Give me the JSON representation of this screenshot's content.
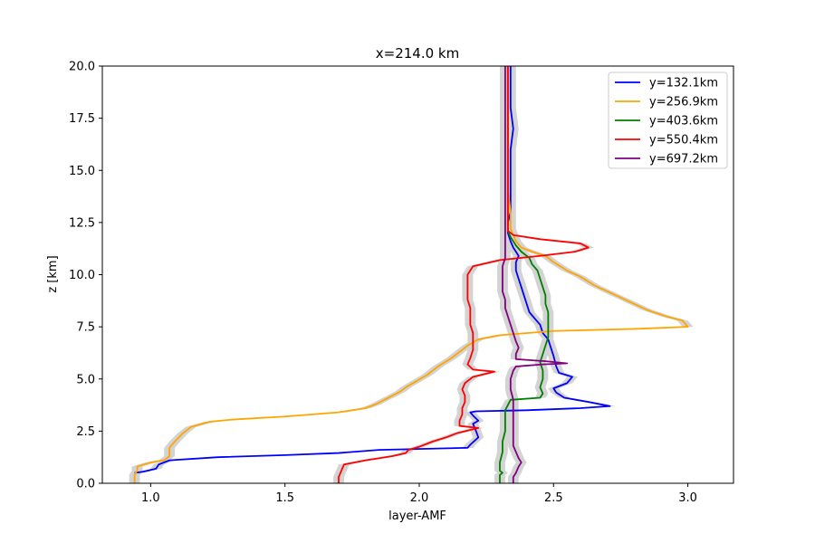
{
  "chart_data": {
    "type": "line",
    "title": "x=214.0 km",
    "xlabel": "layer-AMF",
    "ylabel": "z [km]",
    "xlim": [
      0.82,
      3.17
    ],
    "ylim": [
      0,
      20
    ],
    "xticks": [
      1.0,
      1.5,
      2.0,
      2.5,
      3.0
    ],
    "xtick_labels": [
      "1.0",
      "1.5",
      "2.0",
      "2.5",
      "3.0"
    ],
    "yticks": [
      0,
      2.5,
      5,
      7.5,
      10,
      12.5,
      15,
      17.5,
      20
    ],
    "ytick_labels": [
      "0.0",
      "2.5",
      "5.0",
      "7.5",
      "10.0",
      "12.5",
      "15.0",
      "17.5",
      "20.0"
    ],
    "grid": false,
    "legend_position": "top-right",
    "uncertainty_band_color": "#d3d3d3",
    "uncertainty_halfwidth": 0.02,
    "series": [
      {
        "name": "y=132.1km",
        "color": "#0000ff",
        "points": [
          [
            0.94,
            0.5
          ],
          [
            0.97,
            0.55
          ],
          [
            1.02,
            0.7
          ],
          [
            1.03,
            0.9
          ],
          [
            1.07,
            1.1
          ],
          [
            1.25,
            1.25
          ],
          [
            1.5,
            1.35
          ],
          [
            1.7,
            1.45
          ],
          [
            1.85,
            1.6
          ],
          [
            2.18,
            1.7
          ],
          [
            2.19,
            1.85
          ],
          [
            2.22,
            2.2
          ],
          [
            2.21,
            2.55
          ],
          [
            2.2,
            2.85
          ],
          [
            2.22,
            3.0
          ],
          [
            2.2,
            3.25
          ],
          [
            2.19,
            3.4
          ],
          [
            2.21,
            3.45
          ],
          [
            2.4,
            3.5
          ],
          [
            2.6,
            3.6
          ],
          [
            2.71,
            3.7
          ],
          [
            2.63,
            3.9
          ],
          [
            2.54,
            4.1
          ],
          [
            2.51,
            4.35
          ],
          [
            2.5,
            4.55
          ],
          [
            2.55,
            4.8
          ],
          [
            2.57,
            5.1
          ],
          [
            2.52,
            5.3
          ],
          [
            2.51,
            5.6
          ],
          [
            2.5,
            6.1
          ],
          [
            2.49,
            6.5
          ],
          [
            2.48,
            6.9
          ],
          [
            2.46,
            7.2
          ],
          [
            2.45,
            7.6
          ],
          [
            2.43,
            7.9
          ],
          [
            2.41,
            8.2
          ],
          [
            2.4,
            8.6
          ],
          [
            2.39,
            9.0
          ],
          [
            2.38,
            9.4
          ],
          [
            2.37,
            9.8
          ],
          [
            2.36,
            10.2
          ],
          [
            2.36,
            10.6
          ],
          [
            2.37,
            10.9
          ],
          [
            2.35,
            11.3
          ],
          [
            2.34,
            11.6
          ],
          [
            2.33,
            12.0
          ],
          [
            2.33,
            12.5
          ],
          [
            2.34,
            13.0
          ],
          [
            2.34,
            14.0
          ],
          [
            2.34,
            15.0
          ],
          [
            2.34,
            16.0
          ],
          [
            2.35,
            17.0
          ],
          [
            2.34,
            18.0
          ],
          [
            2.34,
            19.0
          ],
          [
            2.34,
            20.0
          ]
        ]
      },
      {
        "name": "y=256.9km",
        "color": "#ffa500",
        "points": [
          [
            0.94,
            0.0
          ],
          [
            0.94,
            0.4
          ],
          [
            0.95,
            0.6
          ],
          [
            0.95,
            0.8
          ],
          [
            1.0,
            1.0
          ],
          [
            1.05,
            1.1
          ],
          [
            1.07,
            1.3
          ],
          [
            1.07,
            1.7
          ],
          [
            1.09,
            2.0
          ],
          [
            1.12,
            2.4
          ],
          [
            1.15,
            2.7
          ],
          [
            1.22,
            2.95
          ],
          [
            1.3,
            3.05
          ],
          [
            1.5,
            3.2
          ],
          [
            1.7,
            3.4
          ],
          [
            1.8,
            3.6
          ],
          [
            1.84,
            3.8
          ],
          [
            1.87,
            4.0
          ],
          [
            1.9,
            4.2
          ],
          [
            1.93,
            4.4
          ],
          [
            1.95,
            4.6
          ],
          [
            1.99,
            4.9
          ],
          [
            2.03,
            5.2
          ],
          [
            2.07,
            5.6
          ],
          [
            2.12,
            6.0
          ],
          [
            2.15,
            6.3
          ],
          [
            2.18,
            6.6
          ],
          [
            2.22,
            6.9
          ],
          [
            2.3,
            7.1
          ],
          [
            2.5,
            7.3
          ],
          [
            2.8,
            7.4
          ],
          [
            3.0,
            7.5
          ],
          [
            2.98,
            7.8
          ],
          [
            2.92,
            8.0
          ],
          [
            2.85,
            8.3
          ],
          [
            2.8,
            8.6
          ],
          [
            2.75,
            8.9
          ],
          [
            2.7,
            9.2
          ],
          [
            2.65,
            9.5
          ],
          [
            2.6,
            9.9
          ],
          [
            2.55,
            10.2
          ],
          [
            2.5,
            10.6
          ],
          [
            2.47,
            10.9
          ],
          [
            2.42,
            11.1
          ],
          [
            2.38,
            11.3
          ],
          [
            2.36,
            11.6
          ],
          [
            2.35,
            11.9
          ],
          [
            2.34,
            12.2
          ],
          [
            2.34,
            12.6
          ],
          [
            2.34,
            13.0
          ],
          [
            2.33,
            14.0
          ],
          [
            2.33,
            15.0
          ],
          [
            2.33,
            16.0
          ],
          [
            2.33,
            17.0
          ],
          [
            2.33,
            18.0
          ],
          [
            2.33,
            19.0
          ],
          [
            2.33,
            20.0
          ]
        ]
      },
      {
        "name": "y=403.6km",
        "color": "#008000",
        "points": [
          [
            2.3,
            0.0
          ],
          [
            2.3,
            0.4
          ],
          [
            2.31,
            0.5
          ],
          [
            2.3,
            0.6
          ],
          [
            2.3,
            1.0
          ],
          [
            2.31,
            1.5
          ],
          [
            2.31,
            2.0
          ],
          [
            2.32,
            2.5
          ],
          [
            2.32,
            3.0
          ],
          [
            2.32,
            3.5
          ],
          [
            2.34,
            4.0
          ],
          [
            2.45,
            4.1
          ],
          [
            2.46,
            4.3
          ],
          [
            2.45,
            4.6
          ],
          [
            2.46,
            5.0
          ],
          [
            2.46,
            5.4
          ],
          [
            2.45,
            5.8
          ],
          [
            2.46,
            6.2
          ],
          [
            2.47,
            6.6
          ],
          [
            2.48,
            7.0
          ],
          [
            2.48,
            7.4
          ],
          [
            2.48,
            7.8
          ],
          [
            2.48,
            8.2
          ],
          [
            2.47,
            8.6
          ],
          [
            2.47,
            9.0
          ],
          [
            2.46,
            9.4
          ],
          [
            2.45,
            9.8
          ],
          [
            2.44,
            10.2
          ],
          [
            2.42,
            10.5
          ],
          [
            2.41,
            10.8
          ],
          [
            2.38,
            11.1
          ],
          [
            2.36,
            11.4
          ],
          [
            2.34,
            11.8
          ],
          [
            2.33,
            12.1
          ],
          [
            2.33,
            12.5
          ],
          [
            2.33,
            13.0
          ],
          [
            2.33,
            14.0
          ],
          [
            2.33,
            15.0
          ],
          [
            2.33,
            16.0
          ],
          [
            2.33,
            17.0
          ],
          [
            2.33,
            18.0
          ],
          [
            2.33,
            19.0
          ],
          [
            2.33,
            20.0
          ]
        ]
      },
      {
        "name": "y=550.4km",
        "color": "#ff0000",
        "points": [
          [
            1.7,
            0.0
          ],
          [
            1.7,
            0.3
          ],
          [
            1.71,
            0.6
          ],
          [
            1.72,
            0.9
          ],
          [
            1.8,
            1.1
          ],
          [
            1.9,
            1.3
          ],
          [
            1.95,
            1.45
          ],
          [
            1.96,
            1.6
          ],
          [
            2.0,
            1.75
          ],
          [
            2.05,
            2.0
          ],
          [
            2.1,
            2.2
          ],
          [
            2.14,
            2.4
          ],
          [
            2.22,
            2.65
          ],
          [
            2.15,
            2.75
          ],
          [
            2.15,
            3.0
          ],
          [
            2.16,
            3.3
          ],
          [
            2.16,
            3.6
          ],
          [
            2.17,
            3.9
          ],
          [
            2.17,
            4.2
          ],
          [
            2.16,
            4.5
          ],
          [
            2.17,
            4.8
          ],
          [
            2.2,
            5.1
          ],
          [
            2.28,
            5.35
          ],
          [
            2.2,
            5.45
          ],
          [
            2.18,
            5.7
          ],
          [
            2.19,
            6.0
          ],
          [
            2.2,
            6.4
          ],
          [
            2.2,
            6.8
          ],
          [
            2.2,
            7.2
          ],
          [
            2.19,
            7.6
          ],
          [
            2.19,
            8.0
          ],
          [
            2.19,
            8.4
          ],
          [
            2.18,
            8.8
          ],
          [
            2.18,
            9.2
          ],
          [
            2.18,
            9.6
          ],
          [
            2.18,
            10.0
          ],
          [
            2.2,
            10.4
          ],
          [
            2.3,
            10.7
          ],
          [
            2.45,
            10.9
          ],
          [
            2.58,
            11.1
          ],
          [
            2.63,
            11.3
          ],
          [
            2.6,
            11.5
          ],
          [
            2.45,
            11.7
          ],
          [
            2.35,
            11.9
          ],
          [
            2.33,
            12.1
          ],
          [
            2.33,
            12.5
          ],
          [
            2.33,
            13.0
          ],
          [
            2.33,
            14.0
          ],
          [
            2.33,
            15.0
          ],
          [
            2.33,
            16.0
          ],
          [
            2.33,
            17.0
          ],
          [
            2.33,
            18.0
          ],
          [
            2.33,
            19.0
          ],
          [
            2.33,
            20.0
          ]
        ]
      },
      {
        "name": "y=697.2km",
        "color": "#800080",
        "points": [
          [
            2.35,
            0.0
          ],
          [
            2.35,
            0.3
          ],
          [
            2.36,
            0.5
          ],
          [
            2.37,
            0.8
          ],
          [
            2.38,
            1.0
          ],
          [
            2.37,
            1.2
          ],
          [
            2.36,
            1.5
          ],
          [
            2.35,
            1.8
          ],
          [
            2.35,
            2.2
          ],
          [
            2.35,
            2.6
          ],
          [
            2.35,
            3.0
          ],
          [
            2.35,
            3.5
          ],
          [
            2.35,
            4.0
          ],
          [
            2.34,
            4.5
          ],
          [
            2.34,
            5.0
          ],
          [
            2.35,
            5.4
          ],
          [
            2.36,
            5.6
          ],
          [
            2.46,
            5.7
          ],
          [
            2.55,
            5.75
          ],
          [
            2.47,
            5.85
          ],
          [
            2.36,
            5.95
          ],
          [
            2.36,
            6.2
          ],
          [
            2.37,
            6.5
          ],
          [
            2.36,
            6.8
          ],
          [
            2.35,
            7.2
          ],
          [
            2.34,
            7.6
          ],
          [
            2.33,
            8.0
          ],
          [
            2.32,
            8.4
          ],
          [
            2.32,
            8.8
          ],
          [
            2.31,
            9.2
          ],
          [
            2.31,
            9.6
          ],
          [
            2.31,
            10.0
          ],
          [
            2.31,
            10.4
          ],
          [
            2.32,
            10.8
          ],
          [
            2.32,
            11.2
          ],
          [
            2.32,
            11.6
          ],
          [
            2.32,
            12.0
          ],
          [
            2.32,
            12.5
          ],
          [
            2.32,
            13.0
          ],
          [
            2.32,
            14.0
          ],
          [
            2.32,
            15.0
          ],
          [
            2.32,
            16.0
          ],
          [
            2.32,
            17.0
          ],
          [
            2.32,
            18.0
          ],
          [
            2.32,
            19.0
          ],
          [
            2.32,
            20.0
          ]
        ]
      }
    ]
  }
}
